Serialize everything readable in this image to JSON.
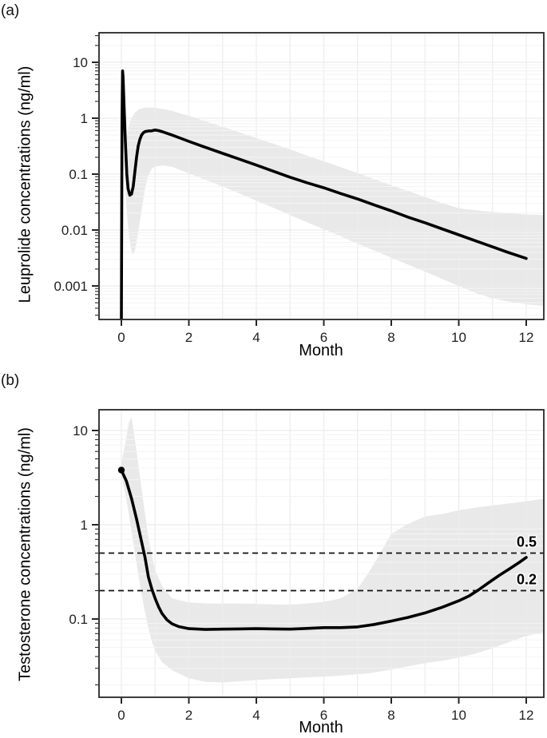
{
  "figure": {
    "panels": [
      {
        "tag": "(a)",
        "y_title": "Leuprolide concentrations (ng/ml)",
        "x_title": "Month"
      },
      {
        "tag": "(b)",
        "y_title": "Testosterone concentrations (ng/ml)",
        "x_title": "Month"
      }
    ]
  },
  "colors": {
    "curve": "#000000",
    "band": "#e9e9e9",
    "grid_major": "#ececec",
    "grid_minor": "#f4f4f4",
    "axis": "#262626",
    "text": "#1f1f1f"
  },
  "chart_data": [
    {
      "type": "line",
      "panel": "a",
      "title": "",
      "xlabel": "Month",
      "ylabel": "Leuprolide concentrations (ng/ml)",
      "y_scale": "log10",
      "xlim": [
        -0.66,
        12.52
      ],
      "ylim": [
        0.00026,
        33.5
      ],
      "x_ticks": [
        0,
        2,
        4,
        6,
        8,
        10,
        12
      ],
      "x_tick_labels": [
        "0",
        "2",
        "4",
        "6",
        "8",
        "10",
        "12"
      ],
      "y_tick_values": [
        10,
        1,
        0.1,
        0.01,
        0.001
      ],
      "y_tick_labels": [
        "10",
        "1",
        "0.1",
        "0.01",
        "0.001"
      ],
      "grid": {
        "vertical_every_month": 1,
        "log_minor_horizontals": true
      },
      "legend": "none",
      "series": [
        {
          "name": "leuprolide-median",
          "points": [
            [
              0,
              0.00026
            ],
            [
              0.02,
              0.9
            ],
            [
              0.035,
              7.0
            ],
            [
              0.05,
              5.5
            ],
            [
              0.08,
              1.6
            ],
            [
              0.12,
              0.35
            ],
            [
              0.16,
              0.1
            ],
            [
              0.2,
              0.055
            ],
            [
              0.25,
              0.042
            ],
            [
              0.3,
              0.044
            ],
            [
              0.35,
              0.06
            ],
            [
              0.4,
              0.11
            ],
            [
              0.45,
              0.2
            ],
            [
              0.5,
              0.32
            ],
            [
              0.55,
              0.42
            ],
            [
              0.6,
              0.5
            ],
            [
              0.65,
              0.55
            ],
            [
              0.7,
              0.575
            ],
            [
              0.8,
              0.59
            ],
            [
              0.9,
              0.595
            ],
            [
              1.0,
              0.615
            ],
            [
              1.1,
              0.6
            ],
            [
              1.25,
              0.565
            ],
            [
              1.5,
              0.5
            ],
            [
              1.75,
              0.44
            ],
            [
              2.0,
              0.385
            ],
            [
              2.5,
              0.3
            ],
            [
              3.0,
              0.235
            ],
            [
              3.5,
              0.185
            ],
            [
              4.0,
              0.145
            ],
            [
              4.5,
              0.113
            ],
            [
              5.0,
              0.088
            ],
            [
              5.5,
              0.07
            ],
            [
              6.0,
              0.057
            ],
            [
              6.5,
              0.045
            ],
            [
              7.0,
              0.036
            ],
            [
              7.5,
              0.028
            ],
            [
              8.0,
              0.022
            ],
            [
              8.5,
              0.017
            ],
            [
              9.0,
              0.0135
            ],
            [
              9.5,
              0.0105
            ],
            [
              10.0,
              0.0082
            ],
            [
              10.5,
              0.0064
            ],
            [
              11.0,
              0.005
            ],
            [
              11.5,
              0.0039
            ],
            [
              12.0,
              0.0031
            ]
          ]
        }
      ],
      "band": {
        "name": "shaded-interval",
        "points": [
          [
            0.12,
            0.05,
            0.3
          ],
          [
            0.18,
            0.015,
            0.55
          ],
          [
            0.25,
            0.006,
            0.85
          ],
          [
            0.32,
            0.0036,
            1.05
          ],
          [
            0.4,
            0.0042,
            1.25
          ],
          [
            0.5,
            0.009,
            1.42
          ],
          [
            0.6,
            0.022,
            1.5
          ],
          [
            0.7,
            0.055,
            1.54
          ],
          [
            0.8,
            0.095,
            1.56
          ],
          [
            0.9,
            0.125,
            1.55
          ],
          [
            1.0,
            0.138,
            1.53
          ],
          [
            1.25,
            0.142,
            1.46
          ],
          [
            1.5,
            0.135,
            1.36
          ],
          [
            2.0,
            0.103,
            1.1
          ],
          [
            2.5,
            0.079,
            0.88
          ],
          [
            3.0,
            0.06,
            0.7
          ],
          [
            3.5,
            0.045,
            0.56
          ],
          [
            4.0,
            0.0335,
            0.44
          ],
          [
            4.5,
            0.025,
            0.35
          ],
          [
            5.0,
            0.0185,
            0.275
          ],
          [
            5.5,
            0.0138,
            0.215
          ],
          [
            6.0,
            0.0103,
            0.17
          ],
          [
            6.5,
            0.0077,
            0.133
          ],
          [
            7.0,
            0.0057,
            0.104
          ],
          [
            7.5,
            0.0043,
            0.081
          ],
          [
            8.0,
            0.0032,
            0.063
          ],
          [
            8.5,
            0.0024,
            0.05
          ],
          [
            9.0,
            0.0018,
            0.039
          ],
          [
            9.5,
            0.00134,
            0.0305
          ],
          [
            10.0,
            0.001,
            0.0245
          ],
          [
            10.5,
            0.00075,
            0.0225
          ],
          [
            11.0,
            0.0006,
            0.021
          ],
          [
            11.5,
            0.00052,
            0.02
          ],
          [
            12.0,
            0.00047,
            0.019
          ],
          [
            12.5,
            0.00044,
            0.0185
          ]
        ]
      },
      "reference_lines": []
    },
    {
      "type": "line",
      "panel": "b",
      "title": "",
      "xlabel": "Month",
      "ylabel": "Testosterone concentrations (ng/ml)",
      "y_scale": "log10",
      "xlim": [
        -0.66,
        12.52
      ],
      "ylim": [
        0.0149,
        16.5
      ],
      "x_ticks": [
        0,
        2,
        4,
        6,
        8,
        10,
        12
      ],
      "x_tick_labels": [
        "0",
        "2",
        "4",
        "6",
        "8",
        "10",
        "12"
      ],
      "y_tick_values": [
        10,
        1,
        0.1
      ],
      "y_tick_labels": [
        "10",
        "1",
        "0.1"
      ],
      "grid": {
        "vertical_every_month": 1,
        "log_minor_horizontals": true
      },
      "legend": "none",
      "start_marker": {
        "x": 0,
        "y": 3.8
      },
      "series": [
        {
          "name": "testosterone-median",
          "points": [
            [
              0,
              3.8
            ],
            [
              0.15,
              2.9
            ],
            [
              0.3,
              1.9
            ],
            [
              0.45,
              1.15
            ],
            [
              0.6,
              0.66
            ],
            [
              0.7,
              0.45
            ],
            [
              0.8,
              0.28
            ],
            [
              0.9,
              0.21
            ],
            [
              1.0,
              0.165
            ],
            [
              1.1,
              0.135
            ],
            [
              1.2,
              0.115
            ],
            [
              1.35,
              0.098
            ],
            [
              1.5,
              0.089
            ],
            [
              1.7,
              0.083
            ],
            [
              2.0,
              0.079
            ],
            [
              2.5,
              0.0775
            ],
            [
              3.0,
              0.078
            ],
            [
              3.5,
              0.0785
            ],
            [
              4.0,
              0.079
            ],
            [
              4.5,
              0.0785
            ],
            [
              5.0,
              0.078
            ],
            [
              5.5,
              0.0795
            ],
            [
              6.0,
              0.081
            ],
            [
              6.5,
              0.081
            ],
            [
              7.0,
              0.0825
            ],
            [
              7.5,
              0.0875
            ],
            [
              8.0,
              0.095
            ],
            [
              8.5,
              0.104
            ],
            [
              9.0,
              0.116
            ],
            [
              9.5,
              0.133
            ],
            [
              10.0,
              0.156
            ],
            [
              10.3,
              0.175
            ],
            [
              10.6,
              0.205
            ],
            [
              10.9,
              0.245
            ],
            [
              11.2,
              0.29
            ],
            [
              11.5,
              0.34
            ],
            [
              11.8,
              0.4
            ],
            [
              12.0,
              0.45
            ]
          ]
        }
      ],
      "band": {
        "name": "shaded-interval",
        "points": [
          [
            0,
            3.3,
            4.4
          ],
          [
            0.12,
            2.1,
            7.5
          ],
          [
            0.22,
            1.3,
            12
          ],
          [
            0.3,
            0.85,
            14
          ],
          [
            0.4,
            0.5,
            8.0
          ],
          [
            0.5,
            0.3,
            4.5
          ],
          [
            0.6,
            0.185,
            2.4
          ],
          [
            0.7,
            0.118,
            1.3
          ],
          [
            0.8,
            0.08,
            0.75
          ],
          [
            0.9,
            0.058,
            0.47
          ],
          [
            1.0,
            0.046,
            0.33
          ],
          [
            1.2,
            0.035,
            0.225
          ],
          [
            1.5,
            0.0285,
            0.165
          ],
          [
            2.0,
            0.0235,
            0.15
          ],
          [
            2.5,
            0.0215,
            0.146
          ],
          [
            3.0,
            0.0212,
            0.146
          ],
          [
            3.5,
            0.0218,
            0.146
          ],
          [
            4.0,
            0.0225,
            0.145
          ],
          [
            4.5,
            0.023,
            0.143
          ],
          [
            5.0,
            0.0235,
            0.142
          ],
          [
            5.5,
            0.024,
            0.146
          ],
          [
            6.0,
            0.0245,
            0.152
          ],
          [
            6.5,
            0.025,
            0.165
          ],
          [
            7.0,
            0.026,
            0.21
          ],
          [
            7.3,
            0.0265,
            0.3
          ],
          [
            7.6,
            0.0275,
            0.45
          ],
          [
            8.0,
            0.029,
            0.8
          ],
          [
            8.5,
            0.0315,
            1.02
          ],
          [
            9.0,
            0.034,
            1.22
          ],
          [
            9.5,
            0.036,
            1.3
          ],
          [
            10.0,
            0.039,
            1.42
          ],
          [
            10.5,
            0.043,
            1.52
          ],
          [
            11.0,
            0.049,
            1.6
          ],
          [
            11.5,
            0.057,
            1.68
          ],
          [
            12.0,
            0.066,
            1.78
          ],
          [
            12.5,
            0.072,
            1.88
          ]
        ]
      },
      "reference_lines": [
        {
          "value": 0.5,
          "label": "0.5"
        },
        {
          "value": 0.2,
          "label": "0.2"
        }
      ]
    }
  ]
}
